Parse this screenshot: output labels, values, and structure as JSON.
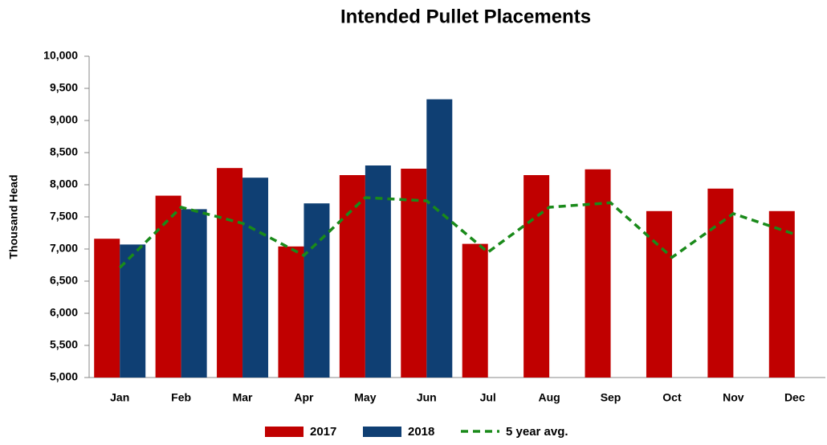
{
  "chart_data": {
    "type": "bar-line",
    "title": "Intended Pullet Placements",
    "y_label": "Thousand Head",
    "categories": [
      "Jan",
      "Feb",
      "Mar",
      "Apr",
      "May",
      "Jun",
      "Jul",
      "Aug",
      "Sep",
      "Oct",
      "Nov",
      "Dec"
    ],
    "series": [
      {
        "name": "2017",
        "type": "bar",
        "color": "#c00000",
        "values": [
          7160,
          7830,
          8260,
          7040,
          8150,
          8250,
          7080,
          8150,
          8240,
          7590,
          7940,
          7590
        ]
      },
      {
        "name": "2018",
        "type": "bar",
        "color": "#0f3f73",
        "values": [
          7070,
          7620,
          8110,
          7710,
          8300,
          9330,
          null,
          null,
          null,
          null,
          null,
          null
        ]
      },
      {
        "name": "5 year avg.",
        "type": "line",
        "color": "#1a8a1a",
        "values": [
          6710,
          7650,
          7400,
          6900,
          7800,
          7750,
          6950,
          7650,
          7720,
          6870,
          7550,
          7230
        ]
      }
    ],
    "ylim": [
      5000,
      10000
    ],
    "yticks": [
      {
        "value": 5000,
        "label": "5,000"
      },
      {
        "value": 5500,
        "label": "5,500"
      },
      {
        "value": 6000,
        "label": "6,000"
      },
      {
        "value": 6500,
        "label": "6,500"
      },
      {
        "value": 7000,
        "label": "7,000"
      },
      {
        "value": 7500,
        "label": "7,500"
      },
      {
        "value": 8000,
        "label": "8,000"
      },
      {
        "value": 8500,
        "label": "8,500"
      },
      {
        "value": 9000,
        "label": "9,000"
      },
      {
        "value": 9500,
        "label": "9,500"
      },
      {
        "value": 10000,
        "label": "10,000"
      }
    ]
  }
}
